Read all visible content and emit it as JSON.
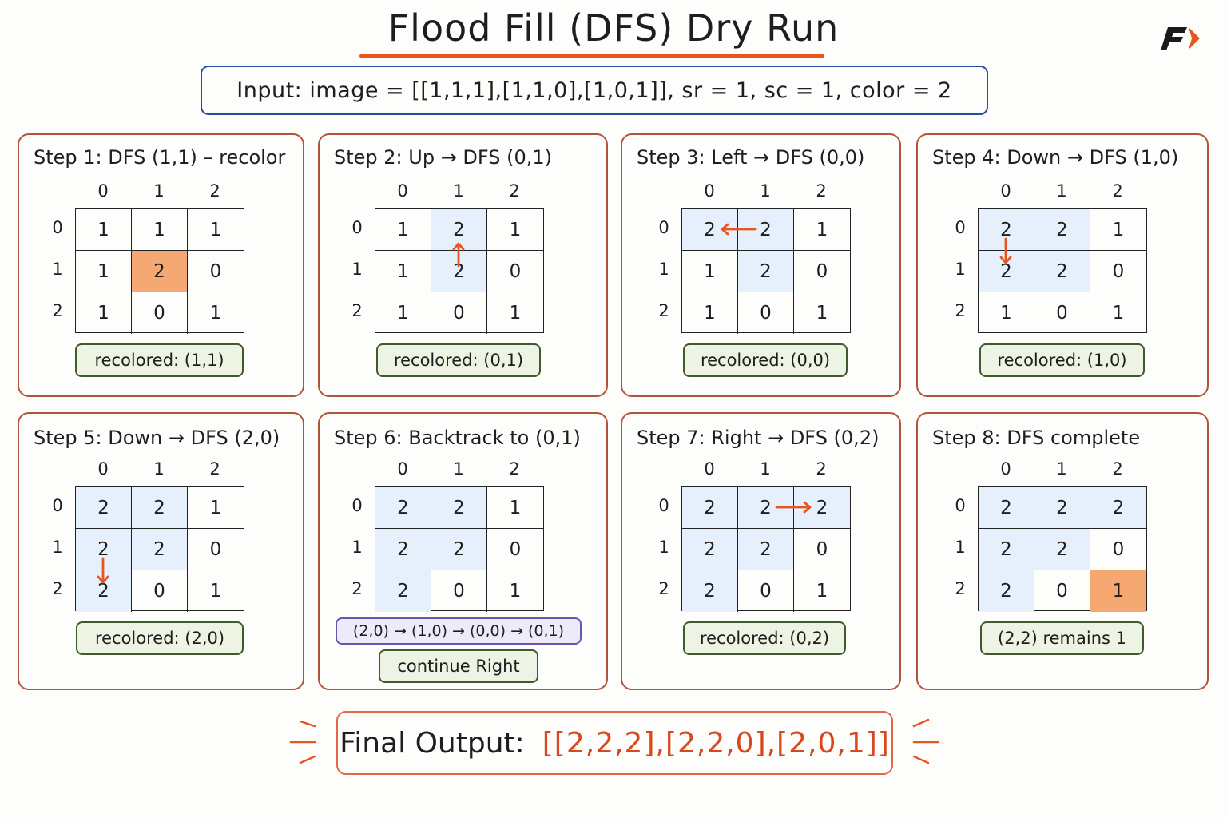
{
  "title": "Flood Fill (DFS) Dry Run",
  "input_text": "Input:  image = [[1,1,1],[1,1,0],[1,0,1]],  sr = 1,  sc = 1,  color = 2",
  "colors": {
    "accent": "#e8561f",
    "fill": "#e6effc",
    "highlight": "#f6a873",
    "note_border": "#3f5a2c",
    "path_border": "#6a55b5",
    "input_border": "#2b4ca3"
  },
  "col_labels": [
    "0",
    "1",
    "2"
  ],
  "row_labels": [
    "0",
    "1",
    "2"
  ],
  "steps": [
    {
      "title": "Step 1: DFS (1,1) – recolor",
      "note": "recolored: (1,1)",
      "grid": [
        [
          "1",
          "1",
          "1"
        ],
        [
          "1",
          "2",
          "0"
        ],
        [
          "1",
          "0",
          "1"
        ]
      ],
      "fill": [
        [
          0,
          0,
          0
        ],
        [
          0,
          0,
          0
        ],
        [
          0,
          0,
          0
        ]
      ],
      "highlight": [
        1,
        1
      ],
      "arrow": null
    },
    {
      "title": "Step 2: Up → DFS (0,1)",
      "note": "recolored: (0,1)",
      "grid": [
        [
          "1",
          "2",
          "1"
        ],
        [
          "1",
          "2",
          "0"
        ],
        [
          "1",
          "0",
          "1"
        ]
      ],
      "fill": [
        [
          0,
          1,
          0
        ],
        [
          0,
          1,
          0
        ],
        [
          0,
          0,
          0
        ]
      ],
      "highlight": null,
      "arrow": "up"
    },
    {
      "title": "Step 3: Left → DFS (0,0)",
      "note": "recolored: (0,0)",
      "grid": [
        [
          "2",
          "2",
          "1"
        ],
        [
          "1",
          "2",
          "0"
        ],
        [
          "1",
          "0",
          "1"
        ]
      ],
      "fill": [
        [
          1,
          1,
          0
        ],
        [
          0,
          1,
          0
        ],
        [
          0,
          0,
          0
        ]
      ],
      "highlight": null,
      "arrow": "left"
    },
    {
      "title": "Step 4: Down → DFS (1,0)",
      "note": "recolored: (1,0)",
      "grid": [
        [
          "2",
          "2",
          "1"
        ],
        [
          "2",
          "2",
          "0"
        ],
        [
          "1",
          "0",
          "1"
        ]
      ],
      "fill": [
        [
          1,
          1,
          0
        ],
        [
          1,
          1,
          0
        ],
        [
          0,
          0,
          0
        ]
      ],
      "highlight": null,
      "arrow": "down1"
    },
    {
      "title": "Step 5: Down → DFS (2,0)",
      "note": "recolored: (2,0)",
      "grid": [
        [
          "2",
          "2",
          "1"
        ],
        [
          "2",
          "2",
          "0"
        ],
        [
          "2",
          "0",
          "1"
        ]
      ],
      "fill": [
        [
          1,
          1,
          0
        ],
        [
          1,
          1,
          0
        ],
        [
          1,
          0,
          0
        ]
      ],
      "highlight": null,
      "arrow": "down2"
    },
    {
      "title": "Step 6: Backtrack to (0,1)",
      "note": "continue Right",
      "path": "(2,0) → (1,0) → (0,0) → (0,1)",
      "grid": [
        [
          "2",
          "2",
          "1"
        ],
        [
          "2",
          "2",
          "0"
        ],
        [
          "2",
          "0",
          "1"
        ]
      ],
      "fill": [
        [
          1,
          1,
          0
        ],
        [
          1,
          1,
          0
        ],
        [
          1,
          0,
          0
        ]
      ],
      "highlight": null,
      "arrow": null
    },
    {
      "title": "Step 7: Right → DFS (0,2)",
      "note": "recolored: (0,2)",
      "grid": [
        [
          "2",
          "2",
          "2"
        ],
        [
          "2",
          "2",
          "0"
        ],
        [
          "2",
          "0",
          "1"
        ]
      ],
      "fill": [
        [
          1,
          1,
          1
        ],
        [
          1,
          1,
          0
        ],
        [
          1,
          0,
          0
        ]
      ],
      "highlight": null,
      "arrow": "right"
    },
    {
      "title": "Step 8: DFS complete",
      "note": "(2,2) remains 1",
      "grid": [
        [
          "2",
          "2",
          "2"
        ],
        [
          "2",
          "2",
          "0"
        ],
        [
          "2",
          "0",
          "1"
        ]
      ],
      "fill": [
        [
          1,
          1,
          1
        ],
        [
          1,
          1,
          0
        ],
        [
          1,
          0,
          0
        ]
      ],
      "highlight": [
        2,
        2
      ],
      "arrow": null
    }
  ],
  "final": {
    "label": "Final Output:",
    "value": "[[2,2,2],[2,2,0],[2,0,1]]"
  }
}
